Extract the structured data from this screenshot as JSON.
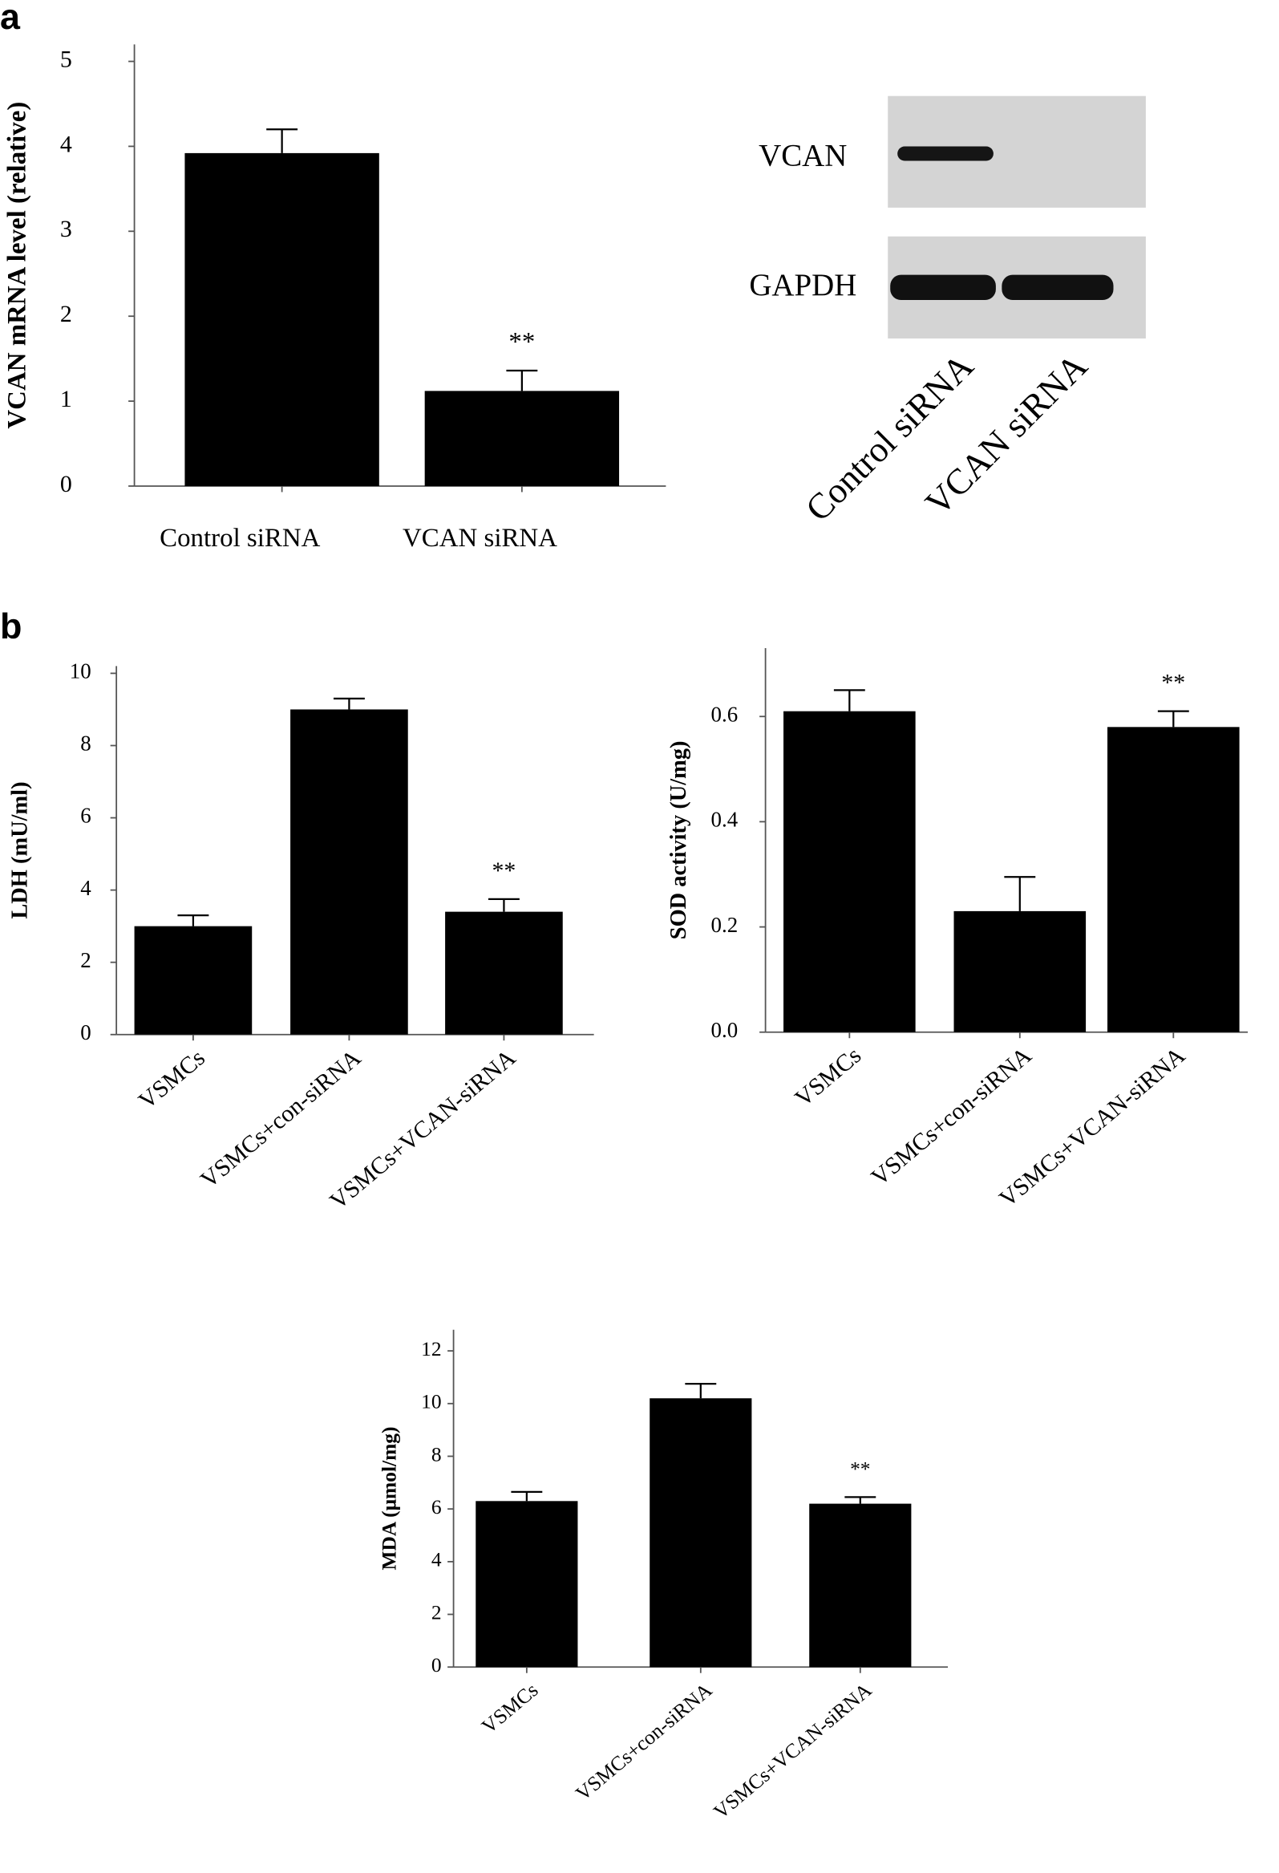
{
  "panel_labels": [
    "a",
    "b"
  ],
  "blot": {
    "rows": [
      "VCAN",
      "GAPDH"
    ],
    "lanes": [
      "Control siRNA",
      "VCAN siRNA"
    ]
  },
  "chart_data": [
    {
      "type": "bar",
      "y_label": "VCAN mRNA level (relative)",
      "categories": [
        "Control siRNA",
        "VCAN siRNA"
      ],
      "values": [
        3.92,
        1.12
      ],
      "errors": [
        0.28,
        0.24
      ],
      "significance": [
        null,
        "**"
      ],
      "color": "#000000",
      "ylim": [
        0,
        5.2
      ],
      "yticks": [
        0,
        1,
        2,
        3,
        4,
        5
      ]
    },
    {
      "type": "bar",
      "y_label": "LDH (mU/ml)",
      "categories": [
        "VSMCs",
        "VSMCs+con-siRNA",
        "VSMCs+VCAN-siRNA"
      ],
      "values": [
        3.0,
        9.0,
        3.4
      ],
      "errors": [
        0.3,
        0.3,
        0.35
      ],
      "significance": [
        null,
        null,
        "**"
      ],
      "color": "#000000",
      "ylim": [
        0,
        10.2
      ],
      "yticks": [
        0,
        2,
        4,
        6,
        8,
        10
      ]
    },
    {
      "type": "bar",
      "y_label": "SOD activity (U/mg)",
      "categories": [
        "VSMCs",
        "VSMCs+con-siRNA",
        "VSMCs+VCAN-siRNA"
      ],
      "values": [
        0.61,
        0.23,
        0.58
      ],
      "errors": [
        0.04,
        0.065,
        0.03
      ],
      "significance": [
        null,
        null,
        "**"
      ],
      "color": "#000000",
      "ylim": [
        0,
        0.73
      ],
      "yticks": [
        {
          "value": 0,
          "label": "0.0"
        },
        0.2,
        0.4,
        0.6
      ]
    },
    {
      "type": "bar",
      "y_label": "MDA (μmol/mg)",
      "categories": [
        "VSMCs",
        "VSMCs+con-siRNA",
        "VSMCs+VCAN-siRNA"
      ],
      "values": [
        6.3,
        10.2,
        6.2
      ],
      "errors": [
        0.35,
        0.55,
        0.25
      ],
      "significance": [
        null,
        null,
        "**"
      ],
      "color": "#000000",
      "ylim": [
        0,
        12.8
      ],
      "yticks": [
        0,
        2,
        4,
        6,
        8,
        10,
        12
      ]
    }
  ]
}
